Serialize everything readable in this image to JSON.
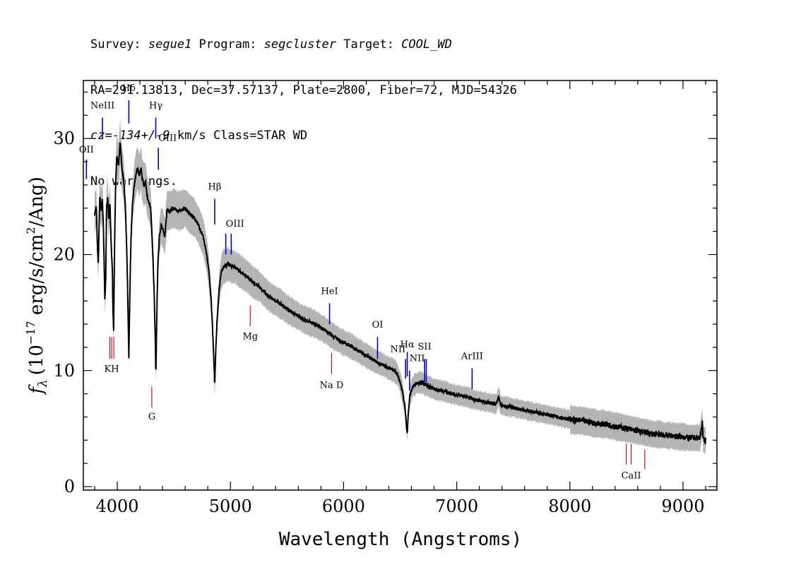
{
  "header": {
    "line1": {
      "survey_label": "Survey: ",
      "survey": "segue1",
      "program_label": " Program: ",
      "program": "segcluster",
      "target_label": " Target: ",
      "target": "COOL_WD"
    },
    "line2": "RA=291.13813, Dec=37.57137, Plate=2800, Fiber=72, MJD=54326",
    "line3": {
      "cz": "cz=-134+/-9",
      "rest": " km/s Class=STAR WD"
    },
    "line4": "No warnings."
  },
  "colors": {
    "flux": "#000000",
    "error_band": "#b4b4b4",
    "emission": "#0000cc",
    "absorption": "#cc0000"
  },
  "chart_data": {
    "type": "line",
    "xlabel": "Wavelength (Angstroms)",
    "ylabel_prefix": "f",
    "ylabel_sub": "λ",
    "ylabel_units": "(10",
    "ylabel_exp": "−17",
    "ylabel_units2": " erg/s/cm",
    "ylabel_exp2": "2",
    "ylabel_units3": "/Ang)",
    "xlim": [
      3700,
      9300
    ],
    "ylim": [
      -0.3,
      35
    ],
    "xticks": [
      4000,
      5000,
      6000,
      7000,
      8000,
      9000
    ],
    "yticks": [
      0,
      10,
      20,
      30
    ],
    "grid": false,
    "series": [
      {
        "values": [
          [
            3800,
            23.5
          ],
          [
            3815,
            24.2
          ],
          [
            3825,
            20.5
          ],
          [
            3832,
            19.2
          ],
          [
            3845,
            25.0
          ],
          [
            3858,
            23.8
          ],
          [
            3868,
            24.8
          ],
          [
            3878,
            22.0
          ],
          [
            3890,
            16.0
          ],
          [
            3898,
            18.0
          ],
          [
            3905,
            24.0
          ],
          [
            3915,
            25.0
          ],
          [
            3925,
            23.0
          ],
          [
            3935,
            24.5
          ],
          [
            3945,
            21.0
          ],
          [
            3957,
            18.5
          ],
          [
            3962,
            15.0
          ],
          [
            3968,
            13.5
          ],
          [
            3975,
            20.0
          ],
          [
            3985,
            26.0
          ],
          [
            3995,
            28.5
          ],
          [
            4005,
            28.0
          ],
          [
            4012,
            27.8
          ],
          [
            4025,
            29.8
          ],
          [
            4040,
            27.5
          ],
          [
            4055,
            26.5
          ],
          [
            4070,
            24.5
          ],
          [
            4085,
            20.0
          ],
          [
            4095,
            15.0
          ],
          [
            4102,
            11.0
          ],
          [
            4108,
            15.0
          ],
          [
            4120,
            21.0
          ],
          [
            4135,
            24.5
          ],
          [
            4150,
            26.0
          ],
          [
            4165,
            27.0
          ],
          [
            4180,
            27.5
          ],
          [
            4195,
            26.8
          ],
          [
            4210,
            27.5
          ],
          [
            4220,
            26.5
          ],
          [
            4235,
            26.0
          ],
          [
            4250,
            26.2
          ],
          [
            4265,
            25.0
          ],
          [
            4280,
            24.5
          ],
          [
            4295,
            24.0
          ],
          [
            4310,
            21.0
          ],
          [
            4325,
            17.0
          ],
          [
            4335,
            13.0
          ],
          [
            4341,
            9.5
          ],
          [
            4348,
            14.0
          ],
          [
            4358,
            19.0
          ],
          [
            4372,
            21.5
          ],
          [
            4388,
            22.5
          ],
          [
            4405,
            22.2
          ],
          [
            4420,
            21.5
          ],
          [
            4440,
            23.8
          ],
          [
            4470,
            23.8
          ],
          [
            4500,
            24.0
          ],
          [
            4530,
            23.8
          ],
          [
            4560,
            23.8
          ],
          [
            4600,
            24.0
          ],
          [
            4640,
            23.5
          ],
          [
            4680,
            23.2
          ],
          [
            4720,
            22.5
          ],
          [
            4760,
            21.5
          ],
          [
            4790,
            20.0
          ],
          [
            4810,
            18.5
          ],
          [
            4830,
            16.0
          ],
          [
            4845,
            13.0
          ],
          [
            4855,
            10.5
          ],
          [
            4861,
            8.6
          ],
          [
            4868,
            11.0
          ],
          [
            4880,
            14.0
          ],
          [
            4900,
            17.0
          ],
          [
            4920,
            18.5
          ],
          [
            4940,
            19.0
          ],
          [
            4960,
            19.0
          ],
          [
            4980,
            19.2
          ],
          [
            5000,
            19.0
          ],
          [
            5040,
            18.9
          ],
          [
            5080,
            18.6
          ],
          [
            5120,
            18.3
          ],
          [
            5160,
            18.0
          ],
          [
            5200,
            17.6
          ],
          [
            5250,
            17.3
          ],
          [
            5300,
            16.8
          ],
          [
            5350,
            16.3
          ],
          [
            5400,
            16.0
          ],
          [
            5450,
            15.7
          ],
          [
            5500,
            15.3
          ],
          [
            5550,
            15.0
          ],
          [
            5600,
            14.7
          ],
          [
            5650,
            14.4
          ],
          [
            5700,
            14.2
          ],
          [
            5750,
            14.0
          ],
          [
            5800,
            13.7
          ],
          [
            5850,
            13.4
          ],
          [
            5900,
            13.0
          ],
          [
            5950,
            12.7
          ],
          [
            6000,
            12.4
          ],
          [
            6050,
            12.2
          ],
          [
            6100,
            11.9
          ],
          [
            6150,
            11.6
          ],
          [
            6200,
            11.3
          ],
          [
            6250,
            11.0
          ],
          [
            6300,
            10.7
          ],
          [
            6350,
            10.5
          ],
          [
            6400,
            10.2
          ],
          [
            6450,
            10.0
          ],
          [
            6480,
            9.6
          ],
          [
            6500,
            9.0
          ],
          [
            6520,
            8.2
          ],
          [
            6540,
            7.0
          ],
          [
            6552,
            5.8
          ],
          [
            6558,
            5.0
          ],
          [
            6563,
            4.7
          ],
          [
            6570,
            6.0
          ],
          [
            6585,
            7.8
          ],
          [
            6610,
            8.6
          ],
          [
            6640,
            8.9
          ],
          [
            6680,
            9.0
          ],
          [
            6720,
            8.8
          ],
          [
            6760,
            8.6
          ],
          [
            6800,
            8.4
          ],
          [
            6850,
            8.3
          ],
          [
            6900,
            8.2
          ],
          [
            6950,
            8.0
          ],
          [
            7000,
            7.9
          ],
          [
            7050,
            7.8
          ],
          [
            7100,
            7.7
          ],
          [
            7150,
            7.5
          ],
          [
            7200,
            7.4
          ],
          [
            7250,
            7.3
          ],
          [
            7300,
            7.2
          ],
          [
            7350,
            7.1
          ],
          [
            7370,
            7.8
          ],
          [
            7390,
            7.0
          ],
          [
            7450,
            6.9
          ],
          [
            7500,
            6.8
          ],
          [
            7550,
            6.7
          ],
          [
            7600,
            6.6
          ],
          [
            7650,
            6.5
          ],
          [
            7700,
            6.4
          ],
          [
            7750,
            6.3
          ],
          [
            7800,
            6.2
          ],
          [
            7850,
            6.1
          ],
          [
            7900,
            6.0
          ],
          [
            7950,
            5.9
          ],
          [
            8000,
            5.8
          ],
          [
            8050,
            5.7
          ],
          [
            8100,
            5.7
          ],
          [
            8150,
            5.6
          ],
          [
            8200,
            5.5
          ],
          [
            8250,
            5.4
          ],
          [
            8300,
            5.4
          ],
          [
            8350,
            5.3
          ],
          [
            8400,
            5.2
          ],
          [
            8450,
            5.1
          ],
          [
            8500,
            5.0
          ],
          [
            8550,
            4.9
          ],
          [
            8600,
            4.8
          ],
          [
            8650,
            4.7
          ],
          [
            8700,
            4.6
          ],
          [
            8750,
            4.5
          ],
          [
            8800,
            4.5
          ],
          [
            8850,
            4.4
          ],
          [
            8900,
            4.4
          ],
          [
            8950,
            4.3
          ],
          [
            9000,
            4.3
          ],
          [
            9050,
            4.2
          ],
          [
            9100,
            4.2
          ],
          [
            9150,
            4.2
          ],
          [
            9170,
            5.5
          ],
          [
            9180,
            4.0
          ],
          [
            9200,
            4.0
          ]
        ]
      }
    ],
    "line_labels": [
      {
        "label": "NeIII",
        "wave": 3869,
        "kind": "emission",
        "y0": 30.0,
        "y1": 31.8,
        "ly": 32.6,
        "align": "middle"
      },
      {
        "label": "Hδ",
        "wave": 4102,
        "kind": "emission",
        "y0": 31.3,
        "y1": 33.3,
        "ly": 34.1,
        "align": "middle"
      },
      {
        "label": "Hγ",
        "wave": 4340,
        "kind": "emission",
        "y0": 30.0,
        "y1": 31.8,
        "ly": 32.6,
        "align": "middle"
      },
      {
        "label": "OIII",
        "wave": 4363,
        "kind": "emission",
        "y0": 27.3,
        "y1": 29.2,
        "ly": 29.8,
        "align": "start"
      },
      {
        "label": "OII",
        "wave": 3727,
        "kind": "emission",
        "y0": 26.5,
        "y1": 28.2,
        "ly": 28.8,
        "align": "middle"
      },
      {
        "label": "Hβ",
        "wave": 4861,
        "kind": "emission",
        "y0": 22.6,
        "y1": 24.8,
        "ly": 25.6,
        "align": "middle"
      },
      {
        "label": "OIII",
        "wave": 4959,
        "kind": "emission",
        "y0": 20.0,
        "y1": 21.8,
        "ly": 22.4,
        "align": "start"
      },
      {
        "label": "",
        "wave": 5007,
        "kind": "emission",
        "y0": 20.0,
        "y1": 21.8
      },
      {
        "label": "HeI",
        "wave": 5876,
        "kind": "emission",
        "y0": 14.0,
        "y1": 15.8,
        "ly": 16.6,
        "align": "middle"
      },
      {
        "label": "OI",
        "wave": 6300,
        "kind": "emission",
        "y0": 11.0,
        "y1": 12.9,
        "ly": 13.7,
        "align": "middle"
      },
      {
        "label": "NII",
        "wave": 6548,
        "kind": "emission",
        "y0": 9.3,
        "y1": 11.0,
        "ly": 11.6,
        "align": "end"
      },
      {
        "label": "Hα",
        "wave": 6563,
        "kind": "emission",
        "y0": 9.5,
        "y1": 11.6,
        "ly": 12.0,
        "align": "middle"
      },
      {
        "label": "NII",
        "wave": 6583,
        "kind": "emission",
        "y0": 8.3,
        "y1": 10.0,
        "ly": 10.8,
        "align": "start"
      },
      {
        "label": "SII",
        "wave": 6716,
        "kind": "emission",
        "y0": 9.0,
        "y1": 11.0,
        "ly": 11.8,
        "align": "middle"
      },
      {
        "label": "",
        "wave": 6731,
        "kind": "emission",
        "y0": 9.0,
        "y1": 11.0
      },
      {
        "label": "ArIII",
        "wave": 7136,
        "kind": "emission",
        "y0": 8.4,
        "y1": 10.2,
        "ly": 11.0,
        "align": "middle"
      },
      {
        "label": "KH",
        "wave": 3950,
        "kind": "absorption",
        "y0": 11.0,
        "y1": 12.9,
        "ly": 9.9,
        "align": "middle"
      },
      {
        "label": "",
        "wave": 3934,
        "kind": "absorption",
        "y0": 11.0,
        "y1": 12.9
      },
      {
        "label": "",
        "wave": 3969,
        "kind": "absorption",
        "y0": 11.0,
        "y1": 12.9
      },
      {
        "label": "G",
        "wave": 4305,
        "kind": "absorption",
        "y0": 6.8,
        "y1": 8.6,
        "ly": 5.8,
        "align": "middle"
      },
      {
        "label": "Mg",
        "wave": 5175,
        "kind": "absorption",
        "y0": 13.8,
        "y1": 15.6,
        "ly": 12.7,
        "align": "middle"
      },
      {
        "label": "Na D",
        "wave": 5894,
        "kind": "absorption",
        "y0": 9.7,
        "y1": 11.5,
        "ly": 8.5,
        "align": "middle"
      },
      {
        "label": "CaII",
        "wave": 8542,
        "kind": "absorption",
        "y0": 1.9,
        "y1": 3.7,
        "ly": 0.7,
        "align": "middle"
      },
      {
        "label": "",
        "wave": 8498,
        "kind": "absorption",
        "y0": 1.9,
        "y1": 3.7
      },
      {
        "label": "",
        "wave": 8662,
        "kind": "absorption",
        "y0": 1.5,
        "y1": 3.2
      }
    ]
  }
}
